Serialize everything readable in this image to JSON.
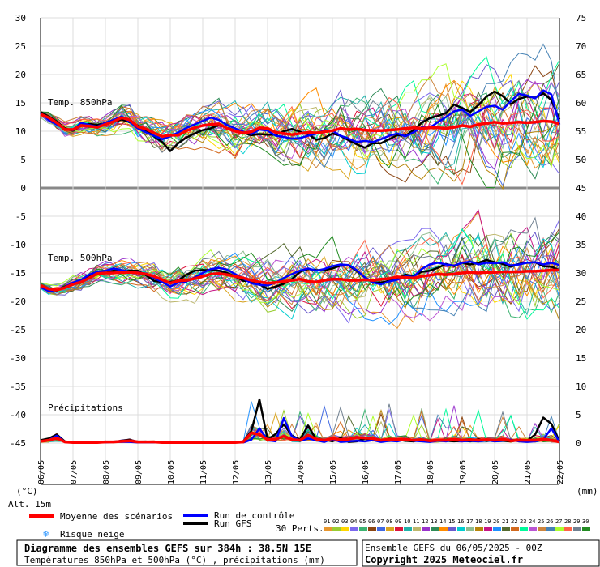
{
  "chart_data": {
    "type": "line",
    "title": "Diagramme des ensembles GEFS sur 384h : 38.5N 15E",
    "subtitle": "Températures 850hPa et 500hPa (°C) , précipitations (mm)",
    "x_ticks": [
      "06/05",
      "07/05",
      "08/05",
      "09/05",
      "10/05",
      "11/05",
      "12/05",
      "13/05",
      "14/05",
      "15/05",
      "16/05",
      "17/05",
      "18/05",
      "19/05",
      "20/05",
      "21/05",
      "22/05"
    ],
    "y_left_ticks": [
      30,
      25,
      20,
      15,
      10,
      5,
      0,
      -5,
      -10,
      -15,
      -20,
      -25,
      -30,
      -35,
      -40,
      -45
    ],
    "y_right_ticks": [
      75,
      70,
      65,
      60,
      55,
      50,
      45,
      40,
      35,
      30,
      25,
      20,
      15,
      10,
      5,
      0
    ],
    "y_left_unit": "(°C)",
    "y_right_unit": "(mm)",
    "altitude": "Alt. 15m",
    "panels": {
      "t850": "Temp. 850hPa",
      "t500": "Temp. 500hPa",
      "precip": "Précipitations"
    },
    "x_days": [
      0,
      0.25,
      0.5,
      0.75,
      1,
      1.25,
      1.5,
      1.75,
      2,
      2.25,
      2.5,
      2.75,
      3,
      3.25,
      3.5,
      3.75,
      4,
      4.25,
      4.5,
      4.75,
      5,
      5.25,
      5.5,
      5.75,
      6,
      6.25,
      6.5,
      6.75,
      7,
      7.25,
      7.5,
      7.75,
      8,
      8.25,
      8.5,
      8.75,
      9,
      9.25,
      9.5,
      9.75,
      10,
      10.25,
      10.5,
      10.75,
      11,
      11.25,
      11.5,
      11.75,
      12,
      12.25,
      12.5,
      12.75,
      13,
      13.25,
      13.5,
      13.75,
      14,
      14.25,
      14.5,
      14.75,
      15,
      15.25,
      15.5,
      15.75,
      16
    ],
    "series": [
      {
        "name": "Moyenne des scénarios",
        "color": "#ff0000",
        "t850": [
          13,
          12.4,
          11.5,
          10.3,
          10.3,
          11,
          10.9,
          10.7,
          11.2,
          11.7,
          12.4,
          12,
          10.8,
          10.4,
          9.7,
          9.1,
          9.3,
          9.3,
          10.1,
          10.6,
          11,
          11.2,
          11.3,
          10.5,
          10,
          9.7,
          9.9,
          10.6,
          10.5,
          9.8,
          9.6,
          9.4,
          9.6,
          9.8,
          9.7,
          9.9,
          10.1,
          10.5,
          10.3,
          10.4,
          10.2,
          10.1,
          10.1,
          10.2,
          10.3,
          10.5,
          10.6,
          10.5,
          10.6,
          10.6,
          10.5,
          10.7,
          11,
          10.8,
          11.2,
          11.4,
          11.6,
          11.4,
          11.5,
          11.6,
          11.5,
          11.6,
          11.8,
          11.7,
          11.3
        ],
        "t500": [
          -17.2,
          -17.8,
          -18,
          -17.6,
          -17,
          -16.6,
          -15.9,
          -15.1,
          -15,
          -15,
          -14.9,
          -14.9,
          -15,
          -15.2,
          -15.6,
          -16.2,
          -16.8,
          -16.4,
          -16.3,
          -16,
          -15.6,
          -15.2,
          -15.1,
          -15.3,
          -15.6,
          -15.9,
          -16.3,
          -16.6,
          -16.8,
          -16.7,
          -16.5,
          -16.3,
          -16.1,
          -16.5,
          -16.6,
          -16.3,
          -16.1,
          -16.1,
          -16.3,
          -16.3,
          -16.2,
          -16.3,
          -16.1,
          -16,
          -15.7,
          -15.8,
          -15.9,
          -15.6,
          -15.4,
          -15.2,
          -15.3,
          -15.2,
          -15,
          -14.9,
          -15,
          -14.9,
          -14.9,
          -14.8,
          -14.8,
          -14.8,
          -14.7,
          -14.7,
          -14.6,
          -14.5,
          -14.5
        ],
        "precip": [
          0.3,
          0.5,
          0.9,
          0.2,
          0.1,
          0.1,
          0.1,
          0.1,
          0.2,
          0.2,
          0.3,
          0.4,
          0.2,
          0.2,
          0.2,
          0.1,
          0.1,
          0.1,
          0.1,
          0.1,
          0.1,
          0.1,
          0.1,
          0.1,
          0.1,
          0.2,
          1.8,
          1.5,
          0.6,
          0.7,
          1.2,
          0.6,
          0.5,
          1.4,
          0.7,
          0.5,
          0.8,
          0.6,
          0.7,
          1,
          0.9,
          0.8,
          0.5,
          0.7,
          0.6,
          0.7,
          0.5,
          0.6,
          0.4,
          0.5,
          0.5,
          0.7,
          0.5,
          0.6,
          0.5,
          0.6,
          0.5,
          0.7,
          0.4,
          0.5,
          0.5,
          0.5,
          0.7,
          0.5,
          0.2
        ]
      },
      {
        "name": "Run de contrôle",
        "color": "#0000ff",
        "t850": [
          13.2,
          12,
          11.2,
          10.4,
          10.2,
          11.5,
          11.1,
          10.8,
          11.5,
          12,
          12.6,
          11.7,
          10.5,
          9.8,
          9.2,
          8.6,
          9.1,
          9.8,
          10.6,
          11.2,
          11.8,
          12.4,
          12,
          11.1,
          10.5,
          9.9,
          9.5,
          10.3,
          10.1,
          9.2,
          9,
          8.7,
          8.8,
          9.2,
          9.6,
          10.2,
          10.1,
          9.2,
          8.7,
          8.1,
          8.3,
          8.1,
          8.6,
          9.2,
          9.6,
          9.1,
          9.8,
          10.7,
          10.6,
          11.6,
          12.5,
          13.5,
          13.8,
          12.7,
          13.5,
          14.3,
          14.5,
          13.8,
          15.3,
          16.6,
          16.3,
          15.8,
          17.2,
          16.5,
          11.2
        ],
        "t500": [
          -17.5,
          -18.2,
          -18,
          -17.5,
          -16.7,
          -16.2,
          -15.3,
          -14.8,
          -14.6,
          -14.2,
          -14.5,
          -14.8,
          -14.9,
          -15.1,
          -15.9,
          -16.6,
          -17.4,
          -16.7,
          -16.5,
          -15.8,
          -15,
          -14.3,
          -14.1,
          -14.4,
          -15.2,
          -16,
          -16.8,
          -17.1,
          -17.2,
          -16.7,
          -15.9,
          -15.2,
          -14.6,
          -14.2,
          -14.6,
          -14.3,
          -13.8,
          -13.5,
          -13.6,
          -14.5,
          -15.8,
          -16.7,
          -17,
          -16.5,
          -16.2,
          -15.6,
          -15.7,
          -14.3,
          -13.5,
          -13.2,
          -13.5,
          -13.7,
          -13.2,
          -13,
          -13.5,
          -13.2,
          -13.3,
          -13.1,
          -13.7,
          -13.5,
          -13.2,
          -13.1,
          -13.5,
          -13.2,
          -13.6
        ],
        "precip": [
          0.3,
          0.5,
          1.3,
          0.2,
          0.1,
          0.1,
          0.1,
          0.1,
          0.1,
          0.2,
          0.2,
          0.2,
          0.1,
          0.1,
          0.1,
          0.1,
          0.1,
          0.1,
          0.1,
          0.1,
          0.1,
          0.1,
          0.1,
          0.1,
          0.1,
          0.1,
          0.6,
          2.6,
          0.5,
          0.3,
          4.4,
          1.2,
          0.4,
          0.8,
          0.5,
          0.2,
          0.7,
          0.2,
          0.3,
          0.4,
          0.3,
          0.5,
          0.2,
          0.4,
          0.3,
          0.6,
          0.4,
          0.3,
          0.2,
          0.4,
          0.3,
          0.6,
          0.3,
          0.4,
          0.3,
          0.5,
          0.3,
          0.4,
          0.6,
          0.3,
          0.2,
          0.3,
          0.6,
          2.6,
          0.2
        ]
      },
      {
        "name": "Run GFS",
        "color": "#000000",
        "t850": [
          13.4,
          12.6,
          11.7,
          10.5,
          10.1,
          11,
          11.3,
          11.1,
          11.4,
          11.6,
          12.1,
          11.6,
          11,
          10.1,
          9.1,
          8.1,
          6.5,
          7.9,
          8.9,
          9.6,
          10.2,
          10.5,
          11.1,
          10.6,
          10.1,
          9.7,
          9.3,
          9.5,
          9.4,
          9.4,
          10,
          10.4,
          9.9,
          9.5,
          8.5,
          8.8,
          9.6,
          9.2,
          8.4,
          7.7,
          7.1,
          7.9,
          7.9,
          8.6,
          9.3,
          9.2,
          10.2,
          11.5,
          12.3,
          12.7,
          13.2,
          14.7,
          14.1,
          13.4,
          14.6,
          16.1,
          17,
          16.2,
          14.8,
          15.7,
          16.1,
          15.9,
          16.7,
          15.5,
          12.1
        ],
        "t500": [
          -17.3,
          -17.9,
          -18.1,
          -17.4,
          -16.9,
          -16.3,
          -15.4,
          -14.8,
          -15,
          -14.6,
          -14.7,
          -14.6,
          -14.6,
          -15.4,
          -16.4,
          -16.6,
          -16.6,
          -16.3,
          -15.3,
          -14.6,
          -14.5,
          -14.5,
          -14.6,
          -15,
          -15.6,
          -16.4,
          -16.4,
          -17,
          -17.8,
          -17.4,
          -16.9,
          -16.1,
          -14.8,
          -14.3,
          -14.5,
          -14.5,
          -14.2,
          -13.7,
          -13.7,
          -14.6,
          -15.8,
          -16.7,
          -16.7,
          -16.4,
          -16,
          -15.3,
          -15.5,
          -14.8,
          -14.6,
          -14.1,
          -13.4,
          -13.8,
          -13.2,
          -13.5,
          -13.2,
          -12.7,
          -13.1,
          -13.4,
          -13.9,
          -13.4,
          -13.2,
          -13.1,
          -13.8,
          -13.9,
          -14.5
        ],
        "precip": [
          0.5,
          0.8,
          1.5,
          0.3,
          0.1,
          0.1,
          0.1,
          0.1,
          0.2,
          0.2,
          0.4,
          0.6,
          0.1,
          0.1,
          0.1,
          0.1,
          0.1,
          0.1,
          0.1,
          0.1,
          0.1,
          0.1,
          0.1,
          0.1,
          0.1,
          0.3,
          2.1,
          7.7,
          0.6,
          1.6,
          3.3,
          1.3,
          0.6,
          3.1,
          0.6,
          0.6,
          0.3,
          0.9,
          0.2,
          0.3,
          0.8,
          0.5,
          0.3,
          0.4,
          0.6,
          0.4,
          0.3,
          0.6,
          0.3,
          0.5,
          0.4,
          0.3,
          0.4,
          0.3,
          0.7,
          0.4,
          0.6,
          0.4,
          0.3,
          0.5,
          0.4,
          1.5,
          4.5,
          3.4,
          0.3
        ]
      }
    ],
    "perturbations": {
      "label": "30 Perts.",
      "colors": [
        "#e8962e",
        "#9acd32",
        "#ffd700",
        "#7b68ee",
        "#3cb371",
        "#8b4513",
        "#4169e1",
        "#daa520",
        "#dc143c",
        "#20b2aa",
        "#bdb76b",
        "#9932cc",
        "#2e8b57",
        "#ff8c00",
        "#6a5acd",
        "#00ced1",
        "#8fbc8f",
        "#b8860b",
        "#c71585",
        "#1e90ff",
        "#556b2f",
        "#d2691e",
        "#00fa9a",
        "#ba55d3",
        "#cd853f",
        "#4682b4",
        "#adff2f",
        "#ff6347",
        "#708090",
        "#228b22"
      ],
      "numbers": [
        "01",
        "02",
        "03",
        "04",
        "05",
        "06",
        "07",
        "08",
        "09",
        "10",
        "11",
        "12",
        "13",
        "14",
        "15",
        "16",
        "17",
        "18",
        "19",
        "20",
        "21",
        "22",
        "23",
        "24",
        "25",
        "26",
        "27",
        "28",
        "29",
        "30"
      ]
    },
    "legend": {
      "mean": "Moyenne des scénarios",
      "control": "Run de contrôle",
      "gfs": "Run GFS",
      "snow": "Risque neige"
    },
    "ensemble_info": "Ensemble GEFS du 06/05/2025 - 00Z",
    "copyright": "Copyright 2025 Meteociel.fr"
  }
}
